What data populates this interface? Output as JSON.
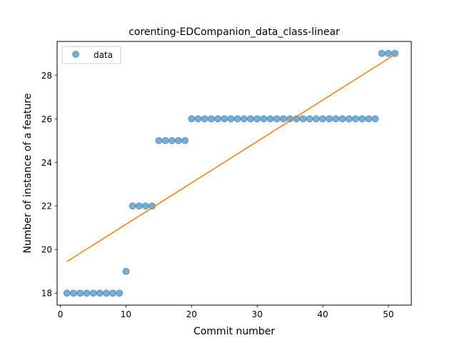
{
  "chart_data": {
    "type": "scatter",
    "title": "corenting-EDCompanion_data_class-linear",
    "xlabel": "Commit number",
    "ylabel": "Number of instance of a feature",
    "xlim": [
      -0.5,
      53.5
    ],
    "ylim": [
      17.45,
      29.55
    ],
    "xticks": [
      0,
      10,
      20,
      30,
      40,
      50
    ],
    "yticks": [
      18,
      20,
      22,
      24,
      26,
      28
    ],
    "grid": false,
    "legend": {
      "position": "top-left",
      "entries": [
        "data"
      ]
    },
    "colors": {
      "data": "#1f77b4",
      "fit": "#ff7f0e"
    },
    "series": [
      {
        "name": "data",
        "kind": "scatter",
        "x": [
          1,
          2,
          3,
          4,
          5,
          6,
          7,
          8,
          9,
          10,
          11,
          12,
          13,
          14,
          15,
          16,
          17,
          18,
          19,
          20,
          21,
          22,
          23,
          24,
          25,
          26,
          27,
          28,
          29,
          30,
          31,
          32,
          33,
          34,
          35,
          36,
          37,
          38,
          39,
          40,
          41,
          42,
          43,
          44,
          45,
          46,
          47,
          48,
          49,
          50,
          51
        ],
        "y": [
          18,
          18,
          18,
          18,
          18,
          18,
          18,
          18,
          18,
          19,
          22,
          22,
          22,
          22,
          25,
          25,
          25,
          25,
          25,
          26,
          26,
          26,
          26,
          26,
          26,
          26,
          26,
          26,
          26,
          26,
          26,
          26,
          26,
          26,
          26,
          26,
          26,
          26,
          26,
          26,
          26,
          26,
          26,
          26,
          26,
          26,
          26,
          26,
          29,
          29,
          29
        ]
      },
      {
        "kind": "line",
        "x": [
          1,
          51
        ],
        "y": [
          19.45,
          28.95
        ]
      }
    ]
  }
}
